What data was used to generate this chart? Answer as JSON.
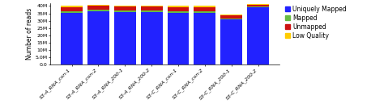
{
  "categories": [
    "S3-A_RNA_con-1",
    "S3-A_RNA_con-2",
    "S3-A_RNA_200-1",
    "S3-A_RNA_200-2",
    "S3-C_RNA_con-1",
    "S3-C_RNA_con-2",
    "S3-C_RNA_200-1",
    "S3-C_RNA_200-2"
  ],
  "uniquely_mapped": [
    35500000,
    36500000,
    36000000,
    36000000,
    35500000,
    35500000,
    31000000,
    39000000
  ],
  "mapped": [
    800000,
    800000,
    800000,
    800000,
    800000,
    800000,
    600000,
    800000
  ],
  "unmapped": [
    2800000,
    2800000,
    2800000,
    2800000,
    2800000,
    2800000,
    1800000,
    1200000
  ],
  "low_quality": [
    900000,
    900000,
    900000,
    900000,
    900000,
    900000,
    600000,
    500000
  ],
  "colors": {
    "uniquely_mapped": "#2222FF",
    "mapped": "#66BB44",
    "unmapped": "#CC1111",
    "low_quality": "#FFCC00"
  },
  "ylabel": "Number of reads",
  "ylim": [
    0,
    42000000
  ],
  "yticks": [
    0,
    5000000,
    10000000,
    15000000,
    20000000,
    25000000,
    30000000,
    35000000,
    40000000
  ],
  "ytick_labels": [
    "0.0",
    "5.0M",
    "10M",
    "15M",
    "20M",
    "25M",
    "30M",
    "35M",
    "40M"
  ],
  "legend_labels": [
    "Uniquely Mapped",
    "Mapped",
    "Unmapped",
    "Low Quality"
  ],
  "legend_colors": [
    "#2222FF",
    "#66BB44",
    "#CC1111",
    "#FFCC00"
  ],
  "tick_fontsize": 4.5,
  "ylabel_fontsize": 5.5,
  "legend_fontsize": 5.5,
  "background_color": "#FFFFFF",
  "bar_width": 0.82
}
